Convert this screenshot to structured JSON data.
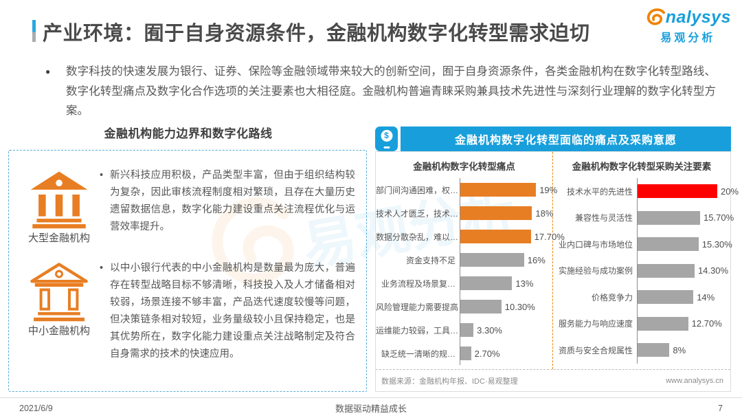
{
  "header": {
    "title": "产业环境：囿于自身资源条件，金融机构数字化转型需求迫切",
    "logo": {
      "brand_text": "nalysys",
      "brand_cn": "易观分析"
    }
  },
  "intro": {
    "bullet": "数字科技的快速发展为银行、证券、保险等金融领域带来较大的创新空间，囿于自身资源条件，各类金融机构在数字化转型路线、数字化转型痛点及数字化合作选项的关注要素也大相径庭。金融机构普遍青睐采购兼具技术先进性与深刻行业理解的数字化转型方案。"
  },
  "left_panel": {
    "title": "金融机构能力边界和数字化路线",
    "items": [
      {
        "icon": "bank-solid-icon",
        "label": "大型金融机构",
        "bullet": "•",
        "text": "新兴科技应用积极，产品类型丰富，但由于组织结构较为复杂，因此审核流程制度相对繁琐，且存在大量历史遗留数据信息，数字化能力建设重点关注流程优化与运营效率提升。"
      },
      {
        "icon": "bank-outline-icon",
        "label": "中小金融机构",
        "bullet": "•",
        "text": "以中小银行代表的中小金融机构是数量最为庞大，普遍存在转型战略目标不够清晰，科技投入及人才储备相对较弱，场景连接不够丰富，产品迭代速度较慢等问题，但决策链条相对较短，业务量级较小且保持稳定，也是其优势所在，数字化能力建设重点关注战略制定及符合自身需求的技术的快速应用。"
      }
    ]
  },
  "right_panel": {
    "header": "金融机构数字化转型面临的痛点及采购意愿",
    "source": "数据来源：金融机构年报、IDC·易观整理",
    "website": "www.analysys.cn"
  },
  "chart_data": [
    {
      "type": "bar",
      "orientation": "horizontal",
      "title": "金融机构数字化转型痛点",
      "categories": [
        "部门间沟通困难，权…",
        "技术人才匮乏，技术…",
        "数据分散杂乱，难以…",
        "资金支持不足",
        "业务流程及场景复…",
        "风险管理能力需要提高",
        "运维能力较弱，工具…",
        "缺乏统一清晰的规…"
      ],
      "values": [
        19,
        18,
        17.7,
        16,
        13,
        10.3,
        3.3,
        2.7
      ],
      "value_labels": [
        "19%",
        "18%",
        "17.70%",
        "16%",
        "13%",
        "10.30%",
        "3.30%",
        "2.70%"
      ],
      "bar_colors": [
        "#e87e23",
        "#e87e23",
        "#e87e23",
        "#a6a6a6",
        "#a6a6a6",
        "#a6a6a6",
        "#a6a6a6",
        "#a6a6a6"
      ],
      "xlim": [
        0,
        20
      ],
      "grid": false,
      "legend": false
    },
    {
      "type": "bar",
      "orientation": "horizontal",
      "title": "金融机构数字化转型采购关注要素",
      "categories": [
        "技术水平的先进性",
        "兼容性与灵活性",
        "业内口碑与市场地位",
        "实施经验与成功案例",
        "价格竞争力",
        "服务能力与响应速度",
        "资质与安全合规属性"
      ],
      "values": [
        20,
        15.7,
        15.3,
        14.3,
        14,
        12.7,
        8
      ],
      "value_labels": [
        "20%",
        "15.70%",
        "15.30%",
        "14.30%",
        "14%",
        "12.70%",
        "8%"
      ],
      "bar_colors": [
        "#ff0000",
        "#a6a6a6",
        "#a6a6a6",
        "#a6a6a6",
        "#a6a6a6",
        "#a6a6a6",
        "#a6a6a6"
      ],
      "xlim": [
        0,
        20
      ],
      "grid": false,
      "legend": false
    }
  ],
  "footer": {
    "date": "2021/6/9",
    "slogan": "数据驱动精益成长",
    "page": "7"
  },
  "colors": {
    "accent_blue": "#189fdb",
    "accent_orange": "#e87e23",
    "logo_orange": "#f08300",
    "bar_gray": "#a6a6a6",
    "highlight_red": "#ff0000"
  }
}
